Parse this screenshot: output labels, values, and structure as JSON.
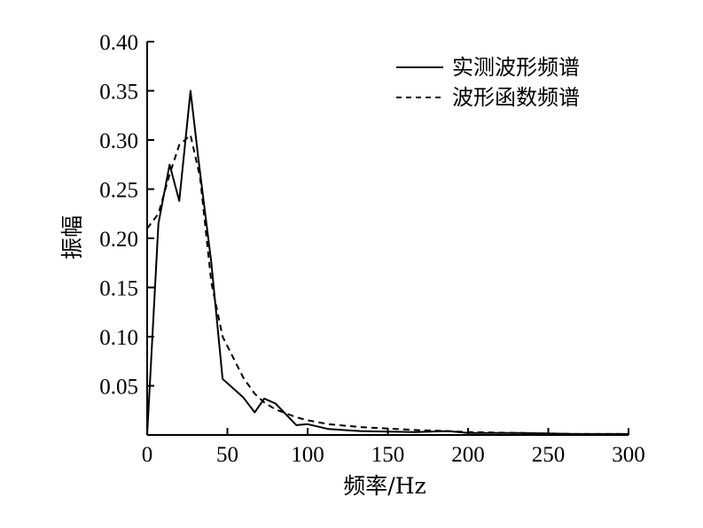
{
  "chart_data": {
    "type": "line",
    "title": "",
    "xlabel": "频率/Hz",
    "ylabel": "振幅",
    "xlim": [
      0,
      300
    ],
    "ylim": [
      0,
      0.4
    ],
    "xticks": [
      0,
      50,
      100,
      150,
      200,
      250,
      300
    ],
    "xtick_labels": [
      "0",
      "50",
      "100",
      "150",
      "200",
      "250",
      "300"
    ],
    "yticks": [
      0.05,
      0.1,
      0.15,
      0.2,
      0.25,
      0.3,
      0.35,
      0.4
    ],
    "ytick_labels": [
      "0.05",
      "0.10",
      "0.15",
      "0.20",
      "0.25",
      "0.30",
      "0.35",
      "0.40"
    ],
    "grid": false,
    "legend_position": "top-right",
    "series": [
      {
        "name": "实测波形频谱",
        "style": "solid",
        "x": [
          0,
          7,
          14,
          20,
          27,
          32,
          40,
          47,
          60,
          67,
          73,
          80,
          93,
          100,
          113,
          133,
          167,
          187,
          200,
          233,
          267,
          300
        ],
        "y": [
          0.0,
          0.215,
          0.275,
          0.238,
          0.35,
          0.28,
          0.175,
          0.057,
          0.038,
          0.023,
          0.037,
          0.032,
          0.01,
          0.011,
          0.006,
          0.004,
          0.003,
          0.004,
          0.002,
          0.002,
          0.001,
          0.001
        ]
      },
      {
        "name": "波形函数频谱",
        "style": "dashed",
        "x": [
          0,
          7,
          14,
          20,
          27,
          33,
          40,
          47,
          60,
          67,
          73,
          80,
          93,
          100,
          113,
          133,
          167,
          187,
          200,
          233,
          267,
          300
        ],
        "y": [
          0.21,
          0.225,
          0.265,
          0.295,
          0.305,
          0.262,
          0.155,
          0.1,
          0.058,
          0.042,
          0.033,
          0.026,
          0.018,
          0.015,
          0.011,
          0.008,
          0.005,
          0.004,
          0.003,
          0.002,
          0.001,
          0.001
        ]
      }
    ]
  },
  "colors": {
    "line": "#000000",
    "background": "#ffffff"
  }
}
